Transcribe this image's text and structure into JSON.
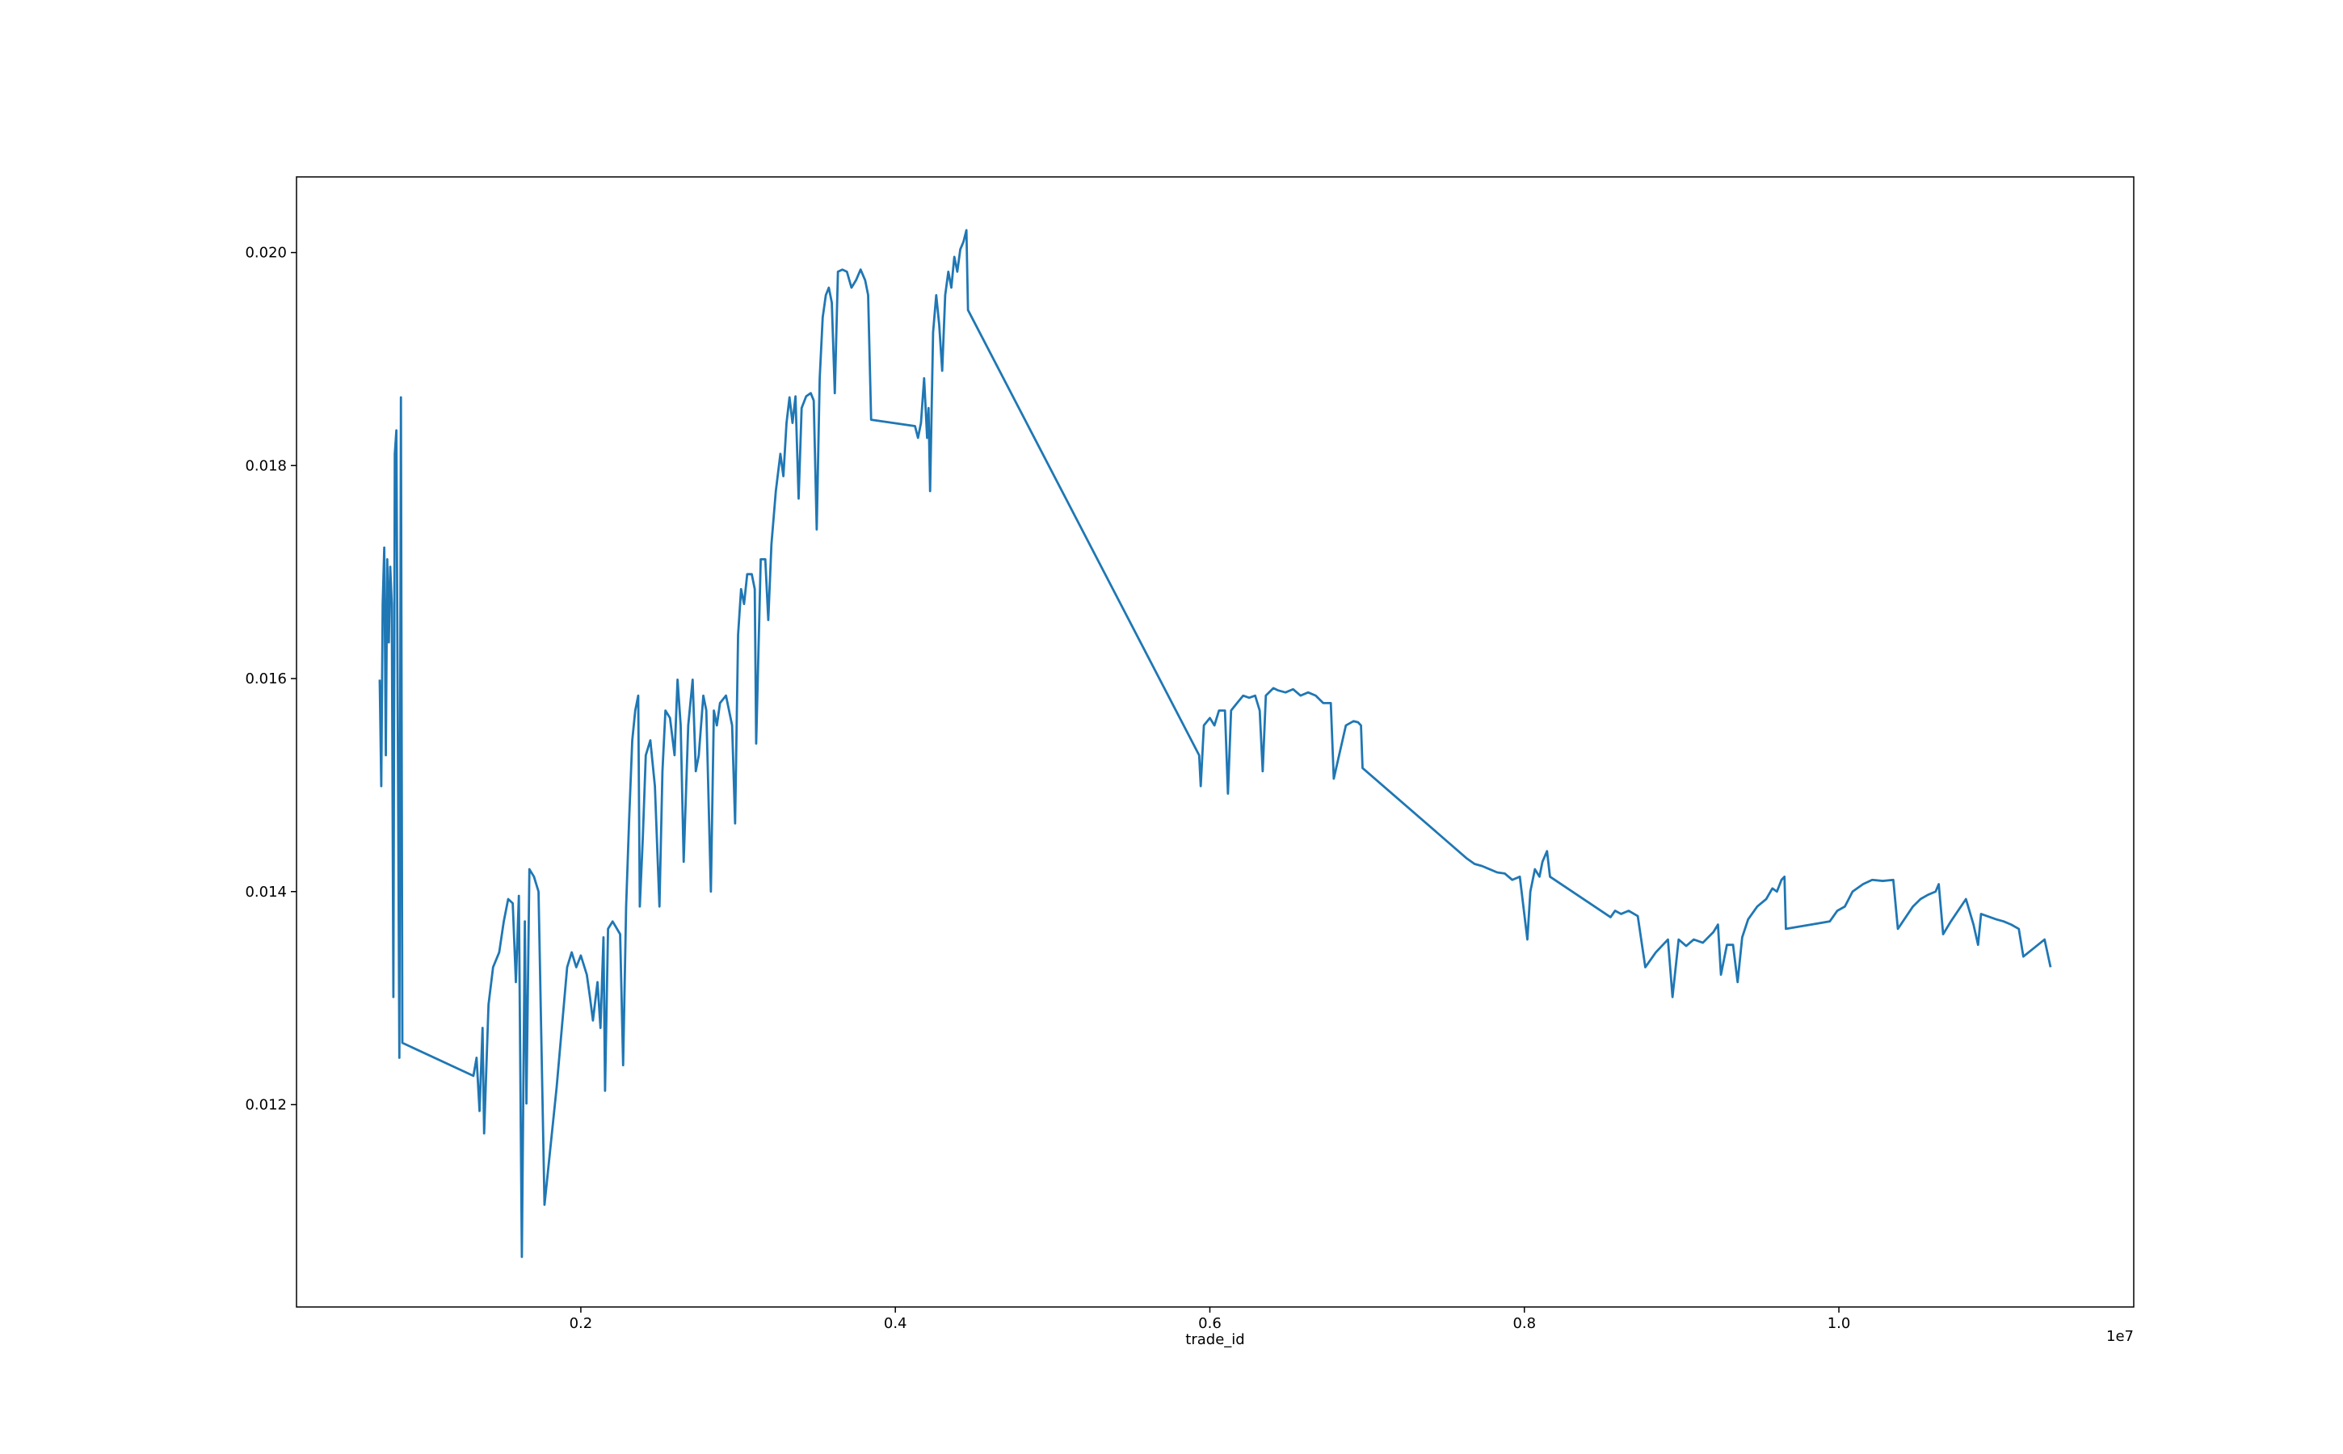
{
  "chart_data": {
    "type": "line",
    "xlabel": "trade_id",
    "x_offset_label": "1e7",
    "color": "#1f77b4",
    "xlim": [
      192000,
      11875000
    ],
    "ylim": [
      0.0101,
      0.02071
    ],
    "xticks": [
      {
        "value": 2000000,
        "label": "0.2"
      },
      {
        "value": 4000000,
        "label": "0.4"
      },
      {
        "value": 6000000,
        "label": "0.6"
      },
      {
        "value": 8000000,
        "label": "0.8"
      },
      {
        "value": 10000000,
        "label": "1.0"
      }
    ],
    "yticks": [
      0.012,
      0.014,
      0.016,
      0.018,
      {
        "value": 0.02,
        "label": "0.020"
      }
    ],
    "x": [
      721000,
      731000,
      740000,
      750000,
      760000,
      769000,
      779000,
      788000,
      798000,
      808000,
      817000,
      827000,
      836000,
      846000,
      856000,
      865000,
      1317000,
      1337000,
      1356000,
      1375000,
      1385000,
      1413000,
      1442000,
      1481000,
      1510000,
      1538000,
      1567000,
      1587000,
      1606000,
      1625000,
      1644000,
      1654000,
      1673000,
      1702000,
      1731000,
      1769000,
      1846000,
      1913000,
      1942000,
      1971000,
      2000000,
      2038000,
      2058000,
      2077000,
      2106000,
      2125000,
      2144000,
      2154000,
      2173000,
      2202000,
      2250000,
      2269000,
      2288000,
      2308000,
      2327000,
      2346000,
      2365000,
      2375000,
      2394000,
      2413000,
      2442000,
      2471000,
      2500000,
      2519000,
      2538000,
      2567000,
      2596000,
      2615000,
      2635000,
      2654000,
      2683000,
      2711000,
      2731000,
      2750000,
      2779000,
      2798000,
      2827000,
      2846000,
      2865000,
      2885000,
      2923000,
      2962000,
      2981000,
      3000000,
      3019000,
      3038000,
      3058000,
      3087000,
      3106000,
      3115000,
      3144000,
      3173000,
      3192000,
      3212000,
      3240000,
      3269000,
      3288000,
      3308000,
      3327000,
      3346000,
      3365000,
      3385000,
      3404000,
      3433000,
      3462000,
      3481000,
      3500000,
      3519000,
      3538000,
      3558000,
      3577000,
      3596000,
      3615000,
      3635000,
      3663000,
      3692000,
      3721000,
      3750000,
      3779000,
      3808000,
      3827000,
      3846000,
      4125000,
      4144000,
      4163000,
      4183000,
      4202000,
      4211000,
      4221000,
      4240000,
      4260000,
      4279000,
      4298000,
      4317000,
      4337000,
      4356000,
      4375000,
      4394000,
      4413000,
      4433000,
      4452000,
      4462000,
      5932000,
      5942000,
      5962000,
      6000000,
      6029000,
      6058000,
      6096000,
      6115000,
      6135000,
      6173000,
      6212000,
      6250000,
      6288000,
      6317000,
      6336000,
      6356000,
      6404000,
      6432000,
      6481000,
      6529000,
      6577000,
      6625000,
      6673000,
      6721000,
      6769000,
      6788000,
      6865000,
      6913000,
      6942000,
      6961000,
      6971000,
      7635000,
      7683000,
      7731000,
      7779000,
      7827000,
      7875000,
      7923000,
      7971000,
      8019000,
      8038000,
      8067000,
      8096000,
      8115000,
      8144000,
      8163000,
      8548000,
      8577000,
      8615000,
      8663000,
      8721000,
      8769000,
      8836000,
      8913000,
      8942000,
      8981000,
      9029000,
      9077000,
      9135000,
      9202000,
      9231000,
      9250000,
      9288000,
      9327000,
      9356000,
      9385000,
      9423000,
      9481000,
      9538000,
      9577000,
      9606000,
      9635000,
      9654000,
      9663000,
      9942000,
      9990000,
      10038000,
      10087000,
      10154000,
      10212000,
      10279000,
      10346000,
      10375000,
      10471000,
      10519000,
      10567000,
      10615000,
      10635000,
      10663000,
      10712000,
      10808000,
      10856000,
      10885000,
      10904000,
      11000000,
      11048000,
      11096000,
      11144000,
      11173000,
      11308000,
      11346000
    ],
    "values": [
      0.01599,
      0.01499,
      0.0167,
      0.01723,
      0.01528,
      0.01712,
      0.01634,
      0.01705,
      0.0167,
      0.01301,
      0.01811,
      0.01833,
      0.01556,
      0.01244,
      0.01864,
      0.01258,
      0.01227,
      0.01244,
      0.01194,
      0.01272,
      0.01173,
      0.01294,
      0.01329,
      0.01343,
      0.01372,
      0.01393,
      0.01389,
      0.01315,
      0.01396,
      0.01057,
      0.01372,
      0.01201,
      0.01421,
      0.01414,
      0.014,
      0.01106,
      0.01216,
      0.01329,
      0.01343,
      0.01329,
      0.0134,
      0.01322,
      0.01301,
      0.01279,
      0.01315,
      0.01272,
      0.01357,
      0.01213,
      0.01365,
      0.01372,
      0.0136,
      0.01237,
      0.01386,
      0.01471,
      0.01542,
      0.0157,
      0.01584,
      0.01386,
      0.0145,
      0.01528,
      0.01542,
      0.01499,
      0.01386,
      0.01513,
      0.0157,
      0.01563,
      0.01528,
      0.01599,
      0.01556,
      0.01428,
      0.01556,
      0.01599,
      0.01513,
      0.01528,
      0.01584,
      0.0157,
      0.014,
      0.0157,
      0.01556,
      0.01577,
      0.01584,
      0.01556,
      0.01464,
      0.01641,
      0.01684,
      0.0167,
      0.01698,
      0.01698,
      0.01684,
      0.01539,
      0.01712,
      0.01712,
      0.01655,
      0.01726,
      0.01776,
      0.01811,
      0.0179,
      0.0184,
      0.01864,
      0.0184,
      0.01865,
      0.01769,
      0.01854,
      0.01865,
      0.01868,
      0.01861,
      0.0174,
      0.01882,
      0.01939,
      0.0196,
      0.01967,
      0.01953,
      0.01868,
      0.01982,
      0.01984,
      0.01982,
      0.01967,
      0.01974,
      0.01984,
      0.01974,
      0.0196,
      0.01843,
      0.01837,
      0.01826,
      0.0184,
      0.01882,
      0.01826,
      0.01854,
      0.01776,
      0.01925,
      0.0196,
      0.01932,
      0.01889,
      0.0196,
      0.01982,
      0.01967,
      0.01996,
      0.01982,
      0.02003,
      0.0201,
      0.02021,
      0.01946,
      0.01528,
      0.01499,
      0.01556,
      0.01563,
      0.01556,
      0.0157,
      0.0157,
      0.01492,
      0.0157,
      0.01577,
      0.01584,
      0.01582,
      0.01584,
      0.0157,
      0.01513,
      0.01584,
      0.01591,
      0.01589,
      0.01587,
      0.0159,
      0.01584,
      0.01587,
      0.01584,
      0.01577,
      0.01577,
      0.01506,
      0.01556,
      0.0156,
      0.01559,
      0.01556,
      0.01516,
      0.01431,
      0.01426,
      0.01424,
      0.01421,
      0.01418,
      0.01417,
      0.01411,
      0.01414,
      0.01355,
      0.014,
      0.01421,
      0.01414,
      0.01428,
      0.01438,
      0.01414,
      0.01376,
      0.01382,
      0.01379,
      0.01382,
      0.01377,
      0.01329,
      0.01343,
      0.01355,
      0.01301,
      0.01355,
      0.01349,
      0.01355,
      0.01352,
      0.01362,
      0.01369,
      0.01322,
      0.0135,
      0.0135,
      0.01315,
      0.01357,
      0.01374,
      0.01386,
      0.01393,
      0.01403,
      0.014,
      0.01411,
      0.01414,
      0.01365,
      0.01372,
      0.01382,
      0.01386,
      0.014,
      0.01407,
      0.01411,
      0.0141,
      0.01411,
      0.01365,
      0.01386,
      0.01393,
      0.01397,
      0.014,
      0.01407,
      0.0136,
      0.01372,
      0.01393,
      0.01369,
      0.0135,
      0.01379,
      0.01374,
      0.01372,
      0.01369,
      0.01365,
      0.01339,
      0.01355,
      0.01329
    ]
  }
}
